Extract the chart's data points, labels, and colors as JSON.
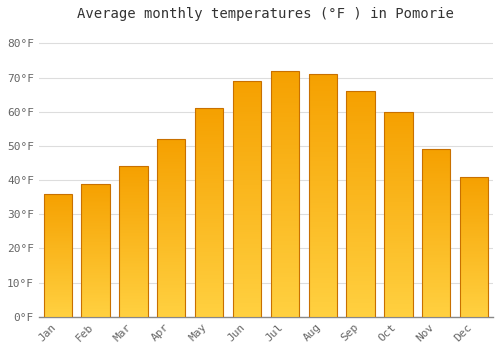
{
  "title": "Average monthly temperatures (°F ) in Pomorie",
  "months": [
    "Jan",
    "Feb",
    "Mar",
    "Apr",
    "May",
    "Jun",
    "Jul",
    "Aug",
    "Sep",
    "Oct",
    "Nov",
    "Dec"
  ],
  "values": [
    36,
    39,
    44,
    52,
    61,
    69,
    72,
    71,
    66,
    60,
    49,
    41
  ],
  "ylim": [
    0,
    85
  ],
  "yticks": [
    0,
    10,
    20,
    30,
    40,
    50,
    60,
    70,
    80
  ],
  "ytick_labels": [
    "0°F",
    "10°F",
    "20°F",
    "30°F",
    "40°F",
    "50°F",
    "60°F",
    "70°F",
    "80°F"
  ],
  "background_color": "#FFFFFF",
  "grid_color": "#DDDDDD",
  "bar_color_light": "#FFD040",
  "bar_color_dark": "#F5A000",
  "bar_edge_color": "#C87000",
  "title_fontsize": 10,
  "tick_fontsize": 8,
  "font_family": "monospace"
}
